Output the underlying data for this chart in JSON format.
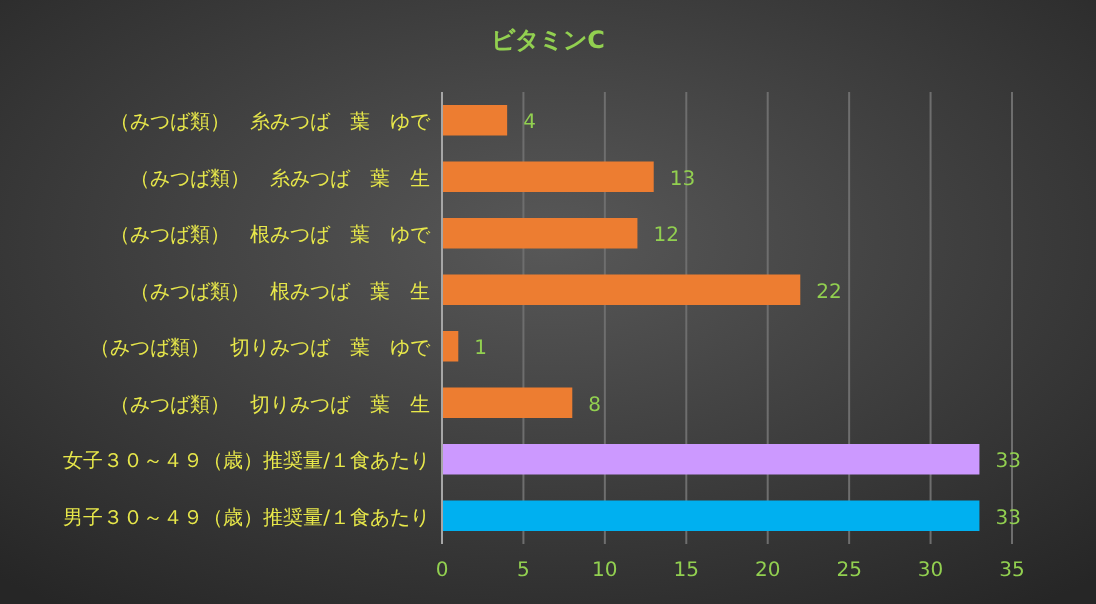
{
  "chart_data": {
    "type": "bar",
    "orientation": "horizontal",
    "title": "ビタミンC",
    "categories": [
      "（みつば類）　糸みつば　葉　ゆで",
      "（みつば類）　糸みつば　葉　生",
      "（みつば類）　根みつば　葉　ゆで",
      "（みつば類）　根みつば　葉　生",
      "（みつば類）　切りみつば　葉　ゆで",
      "（みつば類）　切りみつば　葉　生",
      "女子３０～４９（歳）推奨量/１食あたり",
      "男子３０～４９（歳）推奨量/１食あたり"
    ],
    "values": [
      4,
      13,
      12,
      22,
      1,
      8,
      33,
      33
    ],
    "colors": [
      "#ed7d31",
      "#ed7d31",
      "#ed7d31",
      "#ed7d31",
      "#ed7d31",
      "#ed7d31",
      "#cc99ff",
      "#00b0f0"
    ],
    "xlim": [
      0,
      35
    ],
    "xticks": [
      0,
      5,
      10,
      15,
      20,
      25,
      30,
      35
    ],
    "grid": "x",
    "data_labels": true
  }
}
